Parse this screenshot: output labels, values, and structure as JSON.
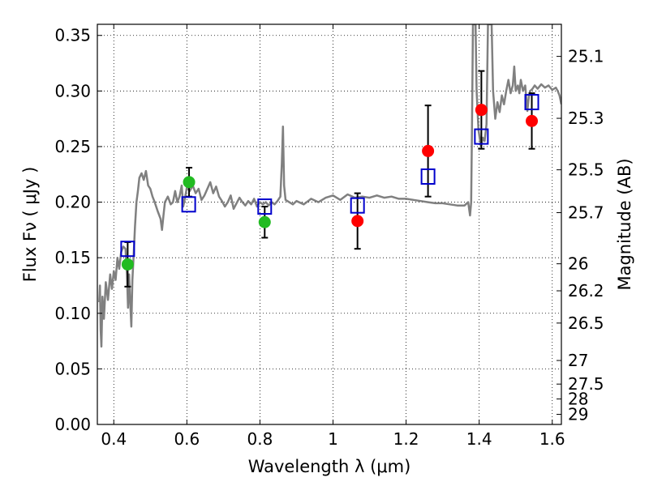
{
  "chart_data": {
    "type": "scatter",
    "xlabel": "Wavelength  λ (μm)",
    "ylabel": "Flux  Fν  ( μJy )",
    "y2label": "Magnitude (AB)",
    "xlim": [
      0.355,
      1.625
    ],
    "ylim": [
      0.0,
      0.36
    ],
    "grid": true,
    "xticks": [
      {
        "value": 0.4,
        "label": "0.4"
      },
      {
        "value": 0.6,
        "label": "0.6"
      },
      {
        "value": 0.8,
        "label": "0.8"
      },
      {
        "value": 1.0,
        "label": "1"
      },
      {
        "value": 1.2,
        "label": "1.2"
      },
      {
        "value": 1.4,
        "label": "1.4"
      },
      {
        "value": 1.6,
        "label": "1.6"
      }
    ],
    "yticks": [
      {
        "value": 0.0,
        "label": "0.00"
      },
      {
        "value": 0.05,
        "label": "0.05"
      },
      {
        "value": 0.1,
        "label": "0.10"
      },
      {
        "value": 0.15,
        "label": "0.15"
      },
      {
        "value": 0.2,
        "label": "0.20"
      },
      {
        "value": 0.25,
        "label": "0.25"
      },
      {
        "value": 0.3,
        "label": "0.30"
      },
      {
        "value": 0.35,
        "label": "0.35"
      }
    ],
    "y2ticks": [
      {
        "mag": 25.1,
        "label": "25.1"
      },
      {
        "mag": 25.3,
        "label": "25.3"
      },
      {
        "mag": 25.5,
        "label": "25.5"
      },
      {
        "mag": 25.7,
        "label": "25.7"
      },
      {
        "mag": 26.0,
        "label": "26"
      },
      {
        "mag": 26.2,
        "label": "26.2"
      },
      {
        "mag": 26.5,
        "label": "26.5"
      },
      {
        "mag": 27.0,
        "label": "27"
      },
      {
        "mag": 27.5,
        "label": "27.5"
      },
      {
        "mag": 28.0,
        "label": "28"
      },
      {
        "mag": 29.0,
        "label": "29"
      }
    ],
    "model_spectrum": {
      "color": "#808080",
      "points": [
        [
          0.36,
          0.11
        ],
        [
          0.362,
          0.125
        ],
        [
          0.364,
          0.085
        ],
        [
          0.366,
          0.07
        ],
        [
          0.369,
          0.115
        ],
        [
          0.373,
          0.095
        ],
        [
          0.378,
          0.128
        ],
        [
          0.384,
          0.112
        ],
        [
          0.39,
          0.135
        ],
        [
          0.395,
          0.122
        ],
        [
          0.4,
          0.138
        ],
        [
          0.405,
          0.13
        ],
        [
          0.41,
          0.15
        ],
        [
          0.415,
          0.14
        ],
        [
          0.42,
          0.155
        ],
        [
          0.426,
          0.16
        ],
        [
          0.432,
          0.158
        ],
        [
          0.436,
          0.135
        ],
        [
          0.439,
          0.105
        ],
        [
          0.442,
          0.135
        ],
        [
          0.445,
          0.11
        ],
        [
          0.448,
          0.088
        ],
        [
          0.451,
          0.13
        ],
        [
          0.454,
          0.15
        ],
        [
          0.458,
          0.178
        ],
        [
          0.462,
          0.2
        ],
        [
          0.466,
          0.21
        ],
        [
          0.47,
          0.222
        ],
        [
          0.476,
          0.226
        ],
        [
          0.482,
          0.22
        ],
        [
          0.488,
          0.228
        ],
        [
          0.494,
          0.215
        ],
        [
          0.5,
          0.212
        ],
        [
          0.506,
          0.205
        ],
        [
          0.512,
          0.2
        ],
        [
          0.52,
          0.192
        ],
        [
          0.528,
          0.185
        ],
        [
          0.532,
          0.175
        ],
        [
          0.536,
          0.188
        ],
        [
          0.54,
          0.2
        ],
        [
          0.548,
          0.205
        ],
        [
          0.556,
          0.198
        ],
        [
          0.562,
          0.2
        ],
        [
          0.568,
          0.21
        ],
        [
          0.574,
          0.2
        ],
        [
          0.58,
          0.205
        ],
        [
          0.586,
          0.215
        ],
        [
          0.59,
          0.196
        ],
        [
          0.594,
          0.202
        ],
        [
          0.6,
          0.213
        ],
        [
          0.608,
          0.21
        ],
        [
          0.616,
          0.215
        ],
        [
          0.624,
          0.208
        ],
        [
          0.632,
          0.212
        ],
        [
          0.64,
          0.202
        ],
        [
          0.648,
          0.206
        ],
        [
          0.656,
          0.212
        ],
        [
          0.664,
          0.218
        ],
        [
          0.672,
          0.208
        ],
        [
          0.68,
          0.214
        ],
        [
          0.688,
          0.205
        ],
        [
          0.696,
          0.201
        ],
        [
          0.704,
          0.196
        ],
        [
          0.712,
          0.2
        ],
        [
          0.72,
          0.206
        ],
        [
          0.728,
          0.194
        ],
        [
          0.736,
          0.199
        ],
        [
          0.744,
          0.204
        ],
        [
          0.752,
          0.2
        ],
        [
          0.76,
          0.197
        ],
        [
          0.768,
          0.201
        ],
        [
          0.776,
          0.198
        ],
        [
          0.784,
          0.203
        ],
        [
          0.792,
          0.196
        ],
        [
          0.8,
          0.2
        ],
        [
          0.808,
          0.198
        ],
        [
          0.816,
          0.2
        ],
        [
          0.824,
          0.197
        ],
        [
          0.832,
          0.2
        ],
        [
          0.84,
          0.198
        ],
        [
          0.848,
          0.201
        ],
        [
          0.856,
          0.205
        ],
        [
          0.86,
          0.235
        ],
        [
          0.863,
          0.268
        ],
        [
          0.866,
          0.215
        ],
        [
          0.87,
          0.202
        ],
        [
          0.88,
          0.2
        ],
        [
          0.89,
          0.198
        ],
        [
          0.9,
          0.201
        ],
        [
          0.92,
          0.198
        ],
        [
          0.94,
          0.203
        ],
        [
          0.96,
          0.2
        ],
        [
          0.98,
          0.204
        ],
        [
          1.0,
          0.206
        ],
        [
          1.02,
          0.202
        ],
        [
          1.04,
          0.207
        ],
        [
          1.06,
          0.204
        ],
        [
          1.08,
          0.205
        ],
        [
          1.1,
          0.204
        ],
        [
          1.12,
          0.206
        ],
        [
          1.14,
          0.204
        ],
        [
          1.16,
          0.205
        ],
        [
          1.18,
          0.203
        ],
        [
          1.2,
          0.203
        ],
        [
          1.22,
          0.202
        ],
        [
          1.24,
          0.201
        ],
        [
          1.26,
          0.2
        ],
        [
          1.28,
          0.199
        ],
        [
          1.3,
          0.199
        ],
        [
          1.32,
          0.198
        ],
        [
          1.34,
          0.197
        ],
        [
          1.36,
          0.197
        ],
        [
          1.37,
          0.2
        ],
        [
          1.375,
          0.188
        ],
        [
          1.378,
          0.2
        ],
        [
          1.38,
          0.26
        ],
        [
          1.383,
          0.36
        ],
        [
          1.39,
          0.36
        ],
        [
          1.393,
          0.3
        ],
        [
          1.398,
          0.265
        ],
        [
          1.405,
          0.25
        ],
        [
          1.41,
          0.258
        ],
        [
          1.415,
          0.255
        ],
        [
          1.42,
          0.27
        ],
        [
          1.424,
          0.36
        ],
        [
          1.434,
          0.36
        ],
        [
          1.438,
          0.3
        ],
        [
          1.444,
          0.275
        ],
        [
          1.45,
          0.29
        ],
        [
          1.456,
          0.281
        ],
        [
          1.462,
          0.296
        ],
        [
          1.468,
          0.288
        ],
        [
          1.474,
          0.3
        ],
        [
          1.48,
          0.31
        ],
        [
          1.486,
          0.298
        ],
        [
          1.492,
          0.305
        ],
        [
          1.496,
          0.322
        ],
        [
          1.5,
          0.3
        ],
        [
          1.506,
          0.305
        ],
        [
          1.51,
          0.298
        ],
        [
          1.514,
          0.31
        ],
        [
          1.52,
          0.3
        ],
        [
          1.526,
          0.305
        ],
        [
          1.532,
          0.282
        ],
        [
          1.536,
          0.295
        ],
        [
          1.54,
          0.3
        ],
        [
          1.546,
          0.302
        ],
        [
          1.552,
          0.305
        ],
        [
          1.56,
          0.302
        ],
        [
          1.57,
          0.306
        ],
        [
          1.58,
          0.303
        ],
        [
          1.59,
          0.305
        ],
        [
          1.6,
          0.301
        ],
        [
          1.61,
          0.303
        ],
        [
          1.615,
          0.3
        ],
        [
          1.62,
          0.296
        ],
        [
          1.625,
          0.288
        ]
      ]
    },
    "series": [
      {
        "marker": "open-square",
        "color": "#0000cc",
        "points": [
          {
            "x": 0.438,
            "y": 0.158
          },
          {
            "x": 0.605,
            "y": 0.198
          },
          {
            "x": 0.813,
            "y": 0.196
          },
          {
            "x": 1.067,
            "y": 0.197
          },
          {
            "x": 1.26,
            "y": 0.223
          },
          {
            "x": 1.406,
            "y": 0.259
          },
          {
            "x": 1.544,
            "y": 0.29
          }
        ]
      },
      {
        "marker": "filled-circle",
        "color": "#22bb22",
        "points": [
          {
            "x": 0.438,
            "y": 0.144,
            "err": 0.02
          },
          {
            "x": 0.606,
            "y": 0.218,
            "err": 0.013
          },
          {
            "x": 0.813,
            "y": 0.182,
            "err": 0.014
          }
        ]
      },
      {
        "marker": "filled-circle",
        "color": "#ff0000",
        "points": [
          {
            "x": 1.067,
            "y": 0.183,
            "err": 0.025
          },
          {
            "x": 1.26,
            "y": 0.246,
            "err": 0.041
          },
          {
            "x": 1.406,
            "y": 0.283,
            "err": 0.035
          },
          {
            "x": 1.544,
            "y": 0.273,
            "err": 0.025
          }
        ]
      }
    ]
  }
}
